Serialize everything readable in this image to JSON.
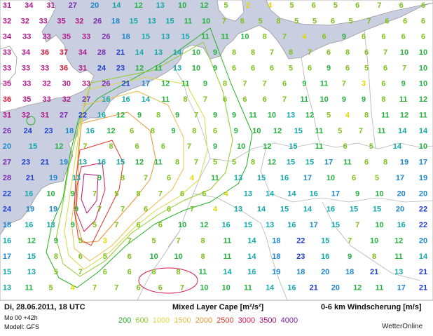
{
  "map": {
    "colors": {
      "sea": "#c9cfe0",
      "land": "#ffffff",
      "border": "#9a9a9a"
    },
    "cape_contours": [
      {
        "level": 200,
        "color": "#23b023"
      },
      {
        "level": 600,
        "color": "#8fcc2a"
      },
      {
        "level": 1000,
        "color": "#d9d945"
      },
      {
        "level": 1500,
        "color": "#e6c04a"
      },
      {
        "level": 2000,
        "color": "#e59433"
      },
      {
        "level": 2500,
        "color": "#dd3a2a"
      },
      {
        "level": 3000,
        "color": "#d21a55"
      },
      {
        "level": 3500,
        "color": "#a8127c"
      }
    ],
    "shear_scale": [
      {
        "min": 0,
        "max": 4,
        "color": "#e2d800"
      },
      {
        "min": 5,
        "max": 8,
        "color": "#7ec01a"
      },
      {
        "min": 9,
        "max": 12,
        "color": "#26b040"
      },
      {
        "min": 13,
        "max": 16,
        "color": "#13a8a8"
      },
      {
        "min": 17,
        "max": 20,
        "color": "#1e86cc"
      },
      {
        "min": 21,
        "max": 24,
        "color": "#1f3fd0"
      },
      {
        "min": 25,
        "max": 29,
        "color": "#7a2bb0"
      },
      {
        "min": 30,
        "max": 35,
        "color": "#b01a8a"
      },
      {
        "min": 36,
        "max": 99,
        "color": "#d11a3a"
      }
    ],
    "wind_shear_rows": [
      {
        "row": 1,
        "values": [
          31,
          34,
          31,
          27,
          20,
          14,
          12,
          13,
          10,
          12,
          5,
          2,
          4,
          5,
          6,
          5,
          6,
          7,
          6,
          6
        ]
      },
      {
        "row": 2,
        "values": [
          32,
          32,
          33,
          35,
          32,
          26,
          18,
          15,
          13,
          15,
          11,
          10,
          7,
          8,
          5,
          8,
          5,
          5,
          6,
          5,
          7,
          6,
          6,
          6
        ]
      },
      {
        "row": 3,
        "values": [
          34,
          33,
          33,
          35,
          33,
          26,
          18,
          15,
          13,
          15,
          11,
          11,
          10,
          8,
          7,
          4,
          6,
          9,
          6,
          6,
          6,
          6
        ]
      },
      {
        "row": 4,
        "values": [
          33,
          34,
          36,
          37,
          34,
          28,
          21,
          14,
          13,
          14,
          10,
          9,
          8,
          8,
          7,
          8,
          7,
          6,
          8,
          6,
          7,
          10,
          10
        ]
      },
      {
        "row": 5,
        "values": [
          33,
          33,
          33,
          36,
          31,
          24,
          23,
          12,
          11,
          13,
          10,
          9,
          6,
          6,
          6,
          5,
          6,
          9,
          6,
          5,
          6,
          7,
          10
        ]
      },
      {
        "row": 6,
        "values": [
          35,
          33,
          32,
          30,
          33,
          26,
          21,
          17,
          12,
          11,
          9,
          8,
          7,
          7,
          6,
          9,
          11,
          7,
          3,
          6,
          9,
          10
        ]
      },
      {
        "row": 7,
        "values": [
          36,
          35,
          33,
          32,
          27,
          16,
          16,
          14,
          11,
          8,
          7,
          6,
          6,
          6,
          7,
          11,
          10,
          9,
          9,
          8,
          11,
          12
        ]
      },
      {
        "row": 8,
        "values": [
          31,
          32,
          31,
          27,
          22,
          16,
          12,
          9,
          8,
          9,
          7,
          9,
          9,
          11,
          10,
          13,
          12,
          5,
          4,
          8,
          11,
          12,
          11
        ]
      },
      {
        "row": 9,
        "values": [
          26,
          24,
          23,
          18,
          16,
          12,
          6,
          8,
          9,
          8,
          6,
          9,
          10,
          12,
          15,
          11,
          5,
          7,
          11,
          14,
          14
        ]
      },
      {
        "row": 10,
        "values": [
          20,
          15,
          12,
          7,
          8,
          6,
          6,
          7,
          9,
          10,
          12,
          15,
          11,
          6,
          5,
          14,
          10
        ]
      },
      {
        "row": 11,
        "values": [
          27,
          23,
          21,
          19,
          13,
          16,
          15,
          12,
          11,
          8,
          7,
          5,
          5,
          8,
          12,
          15,
          15,
          17,
          11,
          6,
          8,
          19,
          17
        ]
      },
      {
        "row": 12,
        "values": [
          28,
          21,
          19,
          13,
          9,
          8,
          7,
          6,
          4,
          11,
          13,
          15,
          16,
          17,
          10,
          6,
          5,
          17,
          19
        ]
      },
      {
        "row": 13,
        "values": [
          22,
          16,
          10,
          9,
          7,
          5,
          8,
          7,
          6,
          6,
          4,
          13,
          14,
          14,
          16,
          17,
          9,
          10,
          20,
          20
        ]
      },
      {
        "row": 14,
        "values": [
          24,
          19,
          19,
          9,
          7,
          7,
          6,
          6,
          7,
          4,
          13,
          14,
          15,
          14,
          16,
          15,
          15,
          20,
          22
        ]
      },
      {
        "row": 15,
        "values": [
          18,
          16,
          13,
          9,
          5,
          7,
          6,
          6,
          10,
          12,
          16,
          15,
          13,
          16,
          17,
          15,
          7,
          10,
          16,
          22
        ]
      },
      {
        "row": 16,
        "values": [
          16,
          12,
          9,
          5,
          3,
          7,
          5,
          7,
          8,
          11,
          14,
          18,
          22,
          15,
          7,
          10,
          12,
          20
        ]
      },
      {
        "row": 17,
        "values": [
          17,
          15,
          8,
          6,
          5,
          6,
          10,
          10,
          8,
          11,
          14,
          18,
          23,
          16,
          9,
          8,
          11,
          14
        ]
      },
      {
        "row": 18,
        "values": [
          15,
          13,
          5,
          7,
          6,
          6,
          8,
          8,
          11,
          14,
          16,
          19,
          18,
          20,
          18,
          21,
          13,
          21
        ]
      },
      {
        "row": 19,
        "values": [
          13,
          11,
          5,
          4,
          7,
          7,
          6,
          6,
          7,
          10,
          10,
          11,
          14,
          16,
          21,
          20,
          12,
          11,
          17,
          21
        ]
      }
    ]
  },
  "footer": {
    "run_title": "Di, 28.06.2011, 18 UTC",
    "run_line1": "Mo 00 +42h",
    "run_line2": "Modell: GFS",
    "cape_title": "Mixed Layer Cape [m²/s²]",
    "shear_title": "0-6 km Windscherung [m/s]",
    "legend": [
      {
        "label": "200",
        "color": "#23b023"
      },
      {
        "label": "600",
        "color": "#8fcc2a"
      },
      {
        "label": "1000",
        "color": "#d9d945"
      },
      {
        "label": "1500",
        "color": "#e6c04a"
      },
      {
        "label": "2000",
        "color": "#e59433"
      },
      {
        "label": "2500",
        "color": "#dd3a2a"
      },
      {
        "label": "3000",
        "color": "#d21a55"
      },
      {
        "label": "3500",
        "color": "#a8127c"
      },
      {
        "label": "4000",
        "color": "#7a1fa8"
      }
    ],
    "brand": "WetterOnline"
  }
}
